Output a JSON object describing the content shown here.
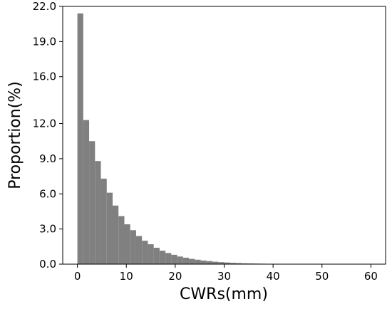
{
  "chart_data": {
    "type": "bar",
    "title": "",
    "xlabel": "CWRs(mm)",
    "ylabel": "Proportion(%)",
    "xlim": [
      -3,
      63
    ],
    "ylim": [
      0,
      22
    ],
    "xticks": [
      0,
      10,
      20,
      30,
      40,
      50,
      60
    ],
    "xtick_labels": [
      "0",
      "10",
      "20",
      "30",
      "40",
      "50",
      "60"
    ],
    "yticks": [
      0,
      3,
      6,
      9,
      12,
      16,
      19,
      22
    ],
    "ytick_labels": [
      "0.0",
      "3.0",
      "6.0",
      "9.0",
      "12.0",
      "16.0",
      "19.0",
      "22.0"
    ],
    "grid": false,
    "bar_color": "#808080",
    "bin_width": 1.2,
    "bin_start": 0,
    "values": [
      21.4,
      12.3,
      10.5,
      8.8,
      7.3,
      6.1,
      5.0,
      4.1,
      3.4,
      2.9,
      2.4,
      2.0,
      1.7,
      1.4,
      1.15,
      0.95,
      0.8,
      0.65,
      0.55,
      0.45,
      0.38,
      0.31,
      0.26,
      0.21,
      0.17,
      0.14,
      0.11,
      0.09,
      0.07,
      0.06,
      0.05,
      0.04,
      0.03,
      0.025,
      0.02,
      0.015,
      0.012,
      0.01,
      0.008,
      0.006,
      0.005,
      0.004,
      0.003,
      0.002,
      0.002,
      0.001,
      0.001,
      0.001,
      0.001,
      0.001
    ]
  }
}
